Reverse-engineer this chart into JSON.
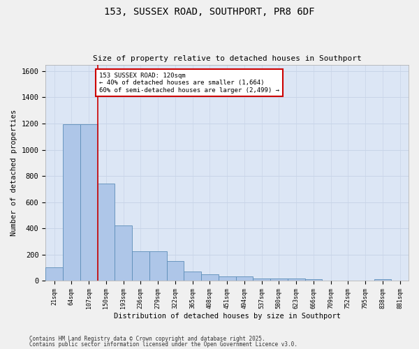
{
  "title1": "153, SUSSEX ROAD, SOUTHPORT, PR8 6DF",
  "title2": "Size of property relative to detached houses in Southport",
  "xlabel": "Distribution of detached houses by size in Southport",
  "ylabel": "Number of detached properties",
  "categories": [
    "21sqm",
    "64sqm",
    "107sqm",
    "150sqm",
    "193sqm",
    "236sqm",
    "279sqm",
    "322sqm",
    "365sqm",
    "408sqm",
    "451sqm",
    "494sqm",
    "537sqm",
    "580sqm",
    "623sqm",
    "666sqm",
    "709sqm",
    "752sqm",
    "795sqm",
    "838sqm",
    "881sqm"
  ],
  "values": [
    100,
    1195,
    1195,
    740,
    420,
    225,
    225,
    150,
    70,
    50,
    33,
    33,
    15,
    15,
    15,
    10,
    0,
    0,
    0,
    10,
    0
  ],
  "bar_color": "#aec6e8",
  "bar_edge_color": "#5b8db8",
  "grid_color": "#c8d4e8",
  "background_color": "#dce6f5",
  "red_line_x": 2.5,
  "annotation_text": "153 SUSSEX ROAD: 120sqm\n← 40% of detached houses are smaller (1,664)\n60% of semi-detached houses are larger (2,499) →",
  "annotation_box_color": "#ffffff",
  "annotation_edge_color": "#cc0000",
  "red_line_color": "#cc0000",
  "ylim": [
    0,
    1650
  ],
  "yticks": [
    0,
    200,
    400,
    600,
    800,
    1000,
    1200,
    1400,
    1600
  ],
  "footer1": "Contains HM Land Registry data © Crown copyright and database right 2025.",
  "footer2": "Contains public sector information licensed under the Open Government Licence v3.0.",
  "fig_bg": "#f0f0f0"
}
